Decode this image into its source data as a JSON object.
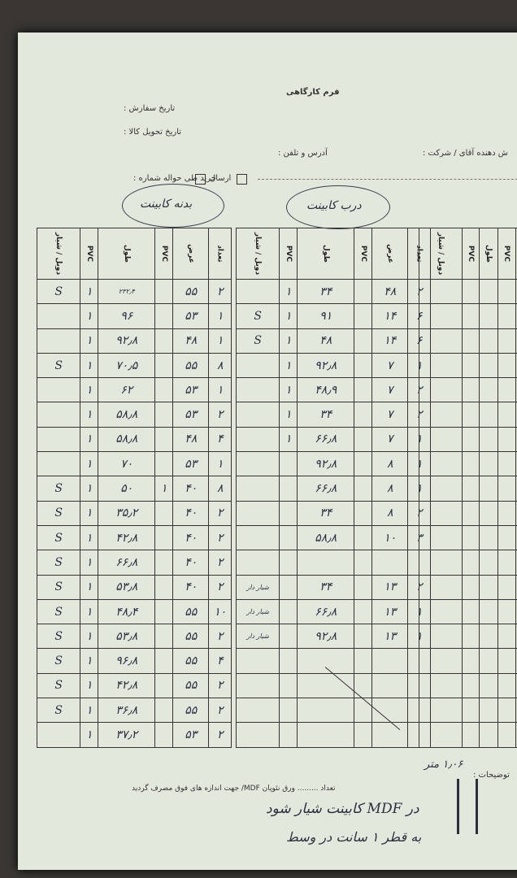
{
  "header": {
    "title": "فرم کارگاهی",
    "order_date": "تاریخ سفارش :",
    "delivery_date": "تاریخ تحویل کالا :",
    "address": "آدرس و تلفن :",
    "customer": "ش دهنده آقای / شرکت :",
    "send": "ارسال",
    "purchase": "خرید طی حواله شماره :"
  },
  "labels": {
    "left": "بدنه کابینت",
    "middle": "درب کابینت"
  },
  "columns": [
    "تعداد",
    "عرض",
    "PVC",
    "طول",
    "PVC",
    "دوبل / شیار"
  ],
  "tables": [
    {
      "rows": [
        [
          "۲",
          "۵۵",
          null,
          "۲۳۲٫۴",
          "۱",
          "S"
        ],
        [
          "۱",
          "۵۳",
          null,
          "۹۶",
          "۱",
          null
        ],
        [
          "۱",
          "۴۸",
          null,
          "۹۲٫۸",
          "۱",
          null
        ],
        [
          "۸",
          "۵۵",
          null,
          "۷۰٫۵",
          "۱",
          "S"
        ],
        [
          "۱",
          "۵۳",
          null,
          "۶۲",
          "۱",
          null
        ],
        [
          "۲",
          "۵۳",
          null,
          "۵۸٫۸",
          "۱",
          null
        ],
        [
          "۴",
          "۴۸",
          null,
          "۵۸٫۸",
          "۱",
          null
        ],
        [
          "۱",
          "۵۳",
          null,
          "۷۰",
          "۱",
          null
        ],
        [
          "۸",
          "۴۰",
          "۱",
          "۵۰",
          "۱",
          "S"
        ],
        [
          "۲",
          "۴۰",
          null,
          "۳۵٫۲",
          "۱",
          "S"
        ],
        [
          "۲",
          "۴۰",
          null,
          "۴۲٫۸",
          "۱",
          "S"
        ],
        [
          "۲",
          "۴۰",
          null,
          "۶۶٫۸",
          "۱",
          "S"
        ],
        [
          "۲",
          "۴۰",
          null,
          "۵۳٫۸",
          "۱",
          "S"
        ],
        [
          "۱۰",
          "۵۵",
          null,
          "۴۸٫۴",
          "۱",
          "S"
        ],
        [
          "۲",
          "۵۵",
          null,
          "۵۳٫۸",
          "۱",
          "S"
        ],
        [
          "۴",
          "۵۵",
          null,
          "۹۶٫۸",
          "۱",
          "S"
        ],
        [
          "۲",
          "۵۵",
          null,
          "۴۲٫۸",
          "۱",
          "S"
        ],
        [
          "۲",
          "۵۵",
          null,
          "۳۶٫۸",
          "۱",
          "S"
        ],
        [
          "۲",
          "۵۳",
          null,
          "۳۷٫۲",
          "۱",
          null
        ]
      ]
    },
    {
      "rows": [
        [
          "۲",
          "۴۸",
          null,
          "۳۴",
          "۱",
          null
        ],
        [
          "۶",
          "۱۴",
          null,
          "۹۱",
          "۱",
          "S"
        ],
        [
          "۶",
          "۱۴",
          null,
          "۴۸",
          "۱",
          "S"
        ],
        [
          "۱",
          "۷",
          null,
          "۹۲٫۸",
          "۱",
          null
        ],
        [
          "۲",
          "۷",
          null,
          "۴۸٫۹",
          "۱",
          null
        ],
        [
          "۲",
          "۷",
          null,
          "۳۴",
          "۱",
          null
        ],
        [
          "۱",
          "۷",
          null,
          "۶۶٫۸",
          "۱",
          null
        ],
        [
          "۱",
          "۸",
          null,
          "۹۲٫۸",
          null,
          null
        ],
        [
          "۱",
          "۸",
          null,
          "۶۶٫۸",
          null,
          null
        ],
        [
          "۲",
          "۸",
          null,
          "۳۴",
          null,
          null
        ],
        [
          "۳",
          "۱۰",
          null,
          "۵۸٫۸",
          null,
          null
        ],
        [
          null,
          null,
          null,
          null,
          null,
          null
        ],
        [
          "۲",
          "۱۳",
          null,
          "۳۴",
          null,
          "شیار دار"
        ],
        [
          "۱",
          "۱۳",
          null,
          "۶۶٫۸",
          null,
          "شیار دار"
        ],
        [
          "۱",
          "۱۳",
          null,
          "۹۲٫۸",
          null,
          "شیار دار"
        ]
      ]
    }
  ],
  "footer": {
    "notes_label": "توضیحات :",
    "notes_handwritten": "۱٫۰۶ متر",
    "sheets_text": "تعداد ......... ورق نئوپان MDF/ جهت اندازه های فوق مصرف گردید",
    "handwritten": [
      "در MDF کابینت شیار شود",
      "به قطر ۱ سانت در وسط"
    ]
  }
}
